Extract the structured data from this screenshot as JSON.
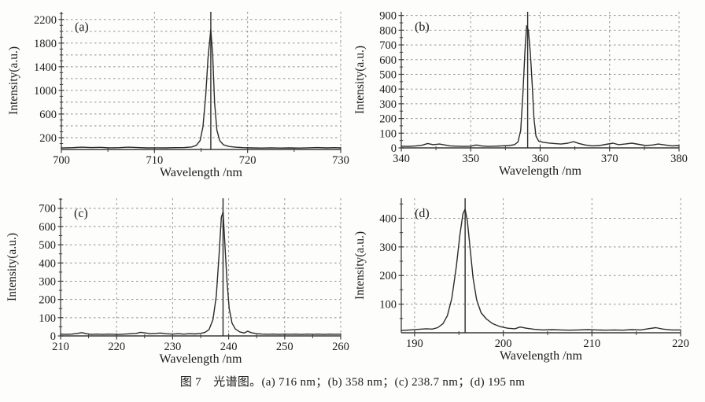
{
  "figure": {
    "caption": "图 7　光谱图。(a) 716 nm；(b) 358 nm；(c) 238.7 nm；(d) 195 nm"
  },
  "colors": {
    "curve": "#2b2b2b",
    "grid": "#909090",
    "axis": "#3d3d3d",
    "text": "#1c1c1c",
    "background": "#fdfdfc"
  },
  "chart_data": [
    {
      "type": "line",
      "label": "(a)",
      "peak_nm": 716,
      "peak_intensity": 2030,
      "xlabel": "Wavelength /nm",
      "ylabel": "Intensity(a.u.)",
      "xlim": [
        700,
        730
      ],
      "ylim": [
        0,
        2330
      ],
      "x_major": [
        700,
        710,
        720,
        730
      ],
      "x_minor": [
        705,
        715,
        725
      ],
      "y_labels": [
        200,
        600,
        1000,
        1400,
        1800,
        2200
      ],
      "y_minor_step": 100,
      "grid_x": [
        710,
        720,
        730
      ],
      "grid_y": [
        200,
        400,
        600,
        800,
        1000,
        1200,
        1400,
        1600,
        1800,
        2000,
        2200
      ],
      "peak_line_x": 716.05,
      "points": [
        [
          700,
          25
        ],
        [
          701.2,
          30
        ],
        [
          702.2,
          38
        ],
        [
          703.2,
          32
        ],
        [
          704.2,
          36
        ],
        [
          705.2,
          28
        ],
        [
          706.2,
          30
        ],
        [
          707.2,
          38
        ],
        [
          708.2,
          32
        ],
        [
          709.2,
          26
        ],
        [
          710.2,
          28
        ],
        [
          711.2,
          26
        ],
        [
          712.2,
          30
        ],
        [
          713.2,
          32
        ],
        [
          714,
          42
        ],
        [
          714.5,
          70
        ],
        [
          714.9,
          150
        ],
        [
          715.2,
          380
        ],
        [
          715.5,
          900
        ],
        [
          715.75,
          1550
        ],
        [
          716.05,
          2030
        ],
        [
          716.25,
          1600
        ],
        [
          716.45,
          800
        ],
        [
          716.7,
          330
        ],
        [
          717,
          150
        ],
        [
          717.4,
          80
        ],
        [
          718,
          50
        ],
        [
          718.7,
          38
        ],
        [
          719.5,
          30
        ],
        [
          720.5,
          26
        ],
        [
          721.5,
          24
        ],
        [
          722.5,
          28
        ],
        [
          723.5,
          24
        ],
        [
          724.5,
          26
        ],
        [
          725.5,
          24
        ],
        [
          726.5,
          28
        ],
        [
          727.5,
          32
        ],
        [
          728.5,
          26
        ],
        [
          729.3,
          30
        ],
        [
          730,
          26
        ]
      ]
    },
    {
      "type": "line",
      "label": "(b)",
      "peak_nm": 358,
      "peak_intensity": 830,
      "xlabel": "Wavelength /nm",
      "ylabel": "Intensity(a.u.)",
      "xlim": [
        340,
        380
      ],
      "ylim": [
        0,
        925
      ],
      "x_major": [
        340,
        350,
        360,
        370,
        380
      ],
      "x_minor": [
        345,
        355,
        365,
        375
      ],
      "y_labels": [
        0,
        100,
        200,
        300,
        400,
        500,
        600,
        700,
        800,
        900
      ],
      "y_minor_step": 50,
      "grid_x": [
        350,
        360,
        370,
        380
      ],
      "grid_y": [
        100,
        200,
        300,
        400,
        500,
        600,
        700,
        800,
        900
      ],
      "peak_line_x": 358.2,
      "points": [
        [
          340,
          12
        ],
        [
          341,
          10
        ],
        [
          342,
          13
        ],
        [
          343,
          18
        ],
        [
          343.8,
          30
        ],
        [
          344.6,
          22
        ],
        [
          345.5,
          26
        ],
        [
          346.3,
          20
        ],
        [
          347,
          14
        ],
        [
          348,
          12
        ],
        [
          349,
          10
        ],
        [
          350,
          12
        ],
        [
          350.8,
          20
        ],
        [
          351.6,
          13
        ],
        [
          352.5,
          10
        ],
        [
          353.5,
          12
        ],
        [
          354.5,
          14
        ],
        [
          355.5,
          16
        ],
        [
          356.3,
          22
        ],
        [
          356.8,
          40
        ],
        [
          357.2,
          120
        ],
        [
          357.5,
          350
        ],
        [
          357.8,
          650
        ],
        [
          358.05,
          830
        ],
        [
          358.3,
          800
        ],
        [
          358.6,
          640
        ],
        [
          358.85,
          430
        ],
        [
          359.1,
          200
        ],
        [
          359.4,
          80
        ],
        [
          359.8,
          45
        ],
        [
          360.5,
          38
        ],
        [
          361.2,
          33
        ],
        [
          362,
          30
        ],
        [
          363,
          26
        ],
        [
          364,
          32
        ],
        [
          364.8,
          42
        ],
        [
          365.6,
          30
        ],
        [
          366.5,
          20
        ],
        [
          367.5,
          14
        ],
        [
          368.5,
          16
        ],
        [
          369.5,
          24
        ],
        [
          370.5,
          32
        ],
        [
          371.3,
          22
        ],
        [
          372.2,
          26
        ],
        [
          373.2,
          32
        ],
        [
          374.2,
          24
        ],
        [
          375.2,
          16
        ],
        [
          376.2,
          20
        ],
        [
          377,
          26
        ],
        [
          378,
          20
        ],
        [
          379,
          14
        ],
        [
          380,
          16
        ]
      ]
    },
    {
      "type": "line",
      "label": "(c)",
      "peak_nm": 238.7,
      "peak_intensity": 680,
      "xlabel": "Wavelength /nm",
      "ylabel": "Intensity(a.u.)",
      "xlim": [
        210,
        260
      ],
      "ylim": [
        0,
        755
      ],
      "x_major": [
        210,
        220,
        230,
        240,
        250,
        260
      ],
      "x_minor": [
        215,
        225,
        235,
        245,
        255
      ],
      "y_labels": [
        0,
        100,
        200,
        300,
        400,
        500,
        600,
        700
      ],
      "y_minor_step": 50,
      "grid_x": [
        220,
        230,
        240,
        250,
        260
      ],
      "grid_y": [
        100,
        200,
        300,
        400,
        500,
        600,
        700
      ],
      "peak_line_x": 239,
      "points": [
        [
          210,
          10
        ],
        [
          211,
          8
        ],
        [
          212,
          10
        ],
        [
          213,
          14
        ],
        [
          213.8,
          18
        ],
        [
          214.6,
          12
        ],
        [
          215.5,
          8
        ],
        [
          216.5,
          10
        ],
        [
          217.5,
          8
        ],
        [
          218.5,
          10
        ],
        [
          219.5,
          9
        ],
        [
          220.5,
          8
        ],
        [
          221.5,
          10
        ],
        [
          222.5,
          12
        ],
        [
          223.5,
          14
        ],
        [
          224.3,
          20
        ],
        [
          225.2,
          16
        ],
        [
          226,
          12
        ],
        [
          227,
          14
        ],
        [
          227.8,
          16
        ],
        [
          228.8,
          12
        ],
        [
          230,
          10
        ],
        [
          231,
          12
        ],
        [
          232,
          10
        ],
        [
          233,
          12
        ],
        [
          234,
          11
        ],
        [
          235,
          14
        ],
        [
          235.8,
          20
        ],
        [
          236.5,
          35
        ],
        [
          237.2,
          90
        ],
        [
          237.8,
          220
        ],
        [
          238.3,
          450
        ],
        [
          238.7,
          650
        ],
        [
          239,
          680
        ],
        [
          239.3,
          520
        ],
        [
          239.7,
          300
        ],
        [
          240.1,
          150
        ],
        [
          240.6,
          70
        ],
        [
          241.2,
          38
        ],
        [
          242,
          22
        ],
        [
          242.8,
          16
        ],
        [
          243.4,
          26
        ],
        [
          244,
          18
        ],
        [
          245,
          12
        ],
        [
          246,
          10
        ],
        [
          247,
          9
        ],
        [
          248,
          10
        ],
        [
          249,
          8
        ],
        [
          250,
          10
        ],
        [
          251,
          9
        ],
        [
          252,
          10
        ],
        [
          253,
          8
        ],
        [
          254,
          10
        ],
        [
          255,
          9
        ],
        [
          256,
          10
        ],
        [
          257,
          8
        ],
        [
          258,
          10
        ],
        [
          259,
          9
        ],
        [
          260,
          10
        ]
      ]
    },
    {
      "type": "line",
      "label": "(d)",
      "peak_nm": 195,
      "peak_intensity": 432,
      "xlabel": "Wavelength /nm",
      "ylabel": "Intensity(a.u.)",
      "xlim": [
        188.5,
        220
      ],
      "ylim": [
        0,
        470
      ],
      "x_major": [
        190,
        200,
        210,
        220
      ],
      "x_minor": [
        195,
        205,
        215
      ],
      "y_labels": [
        100,
        200,
        300,
        400
      ],
      "y_minor_step": 50,
      "grid_x": [
        190,
        200,
        210,
        220
      ],
      "grid_y": [
        100,
        200,
        300,
        400
      ],
      "peak_line_x": 195.7,
      "points": [
        [
          188.5,
          8
        ],
        [
          189.5,
          10
        ],
        [
          190.5,
          12
        ],
        [
          191.3,
          14
        ],
        [
          192,
          13
        ],
        [
          192.6,
          18
        ],
        [
          193.2,
          32
        ],
        [
          193.7,
          60
        ],
        [
          194.2,
          120
        ],
        [
          194.7,
          230
        ],
        [
          195.1,
          340
        ],
        [
          195.45,
          415
        ],
        [
          195.7,
          432
        ],
        [
          195.95,
          390
        ],
        [
          196.25,
          300
        ],
        [
          196.6,
          190
        ],
        [
          197,
          115
        ],
        [
          197.5,
          70
        ],
        [
          198.1,
          48
        ],
        [
          198.8,
          32
        ],
        [
          199.6,
          22
        ],
        [
          200.5,
          16
        ],
        [
          201.3,
          14
        ],
        [
          201.9,
          20
        ],
        [
          202.6,
          16
        ],
        [
          203.5,
          12
        ],
        [
          204.5,
          10
        ],
        [
          205.5,
          11
        ],
        [
          206.5,
          10
        ],
        [
          207.5,
          9
        ],
        [
          208.5,
          10
        ],
        [
          209.5,
          11
        ],
        [
          210.5,
          10
        ],
        [
          211.5,
          9
        ],
        [
          212.5,
          10
        ],
        [
          213.5,
          9
        ],
        [
          214.5,
          11
        ],
        [
          215.5,
          10
        ],
        [
          216.3,
          14
        ],
        [
          217.2,
          18
        ],
        [
          218,
          13
        ],
        [
          219,
          10
        ],
        [
          220,
          10
        ]
      ]
    }
  ]
}
